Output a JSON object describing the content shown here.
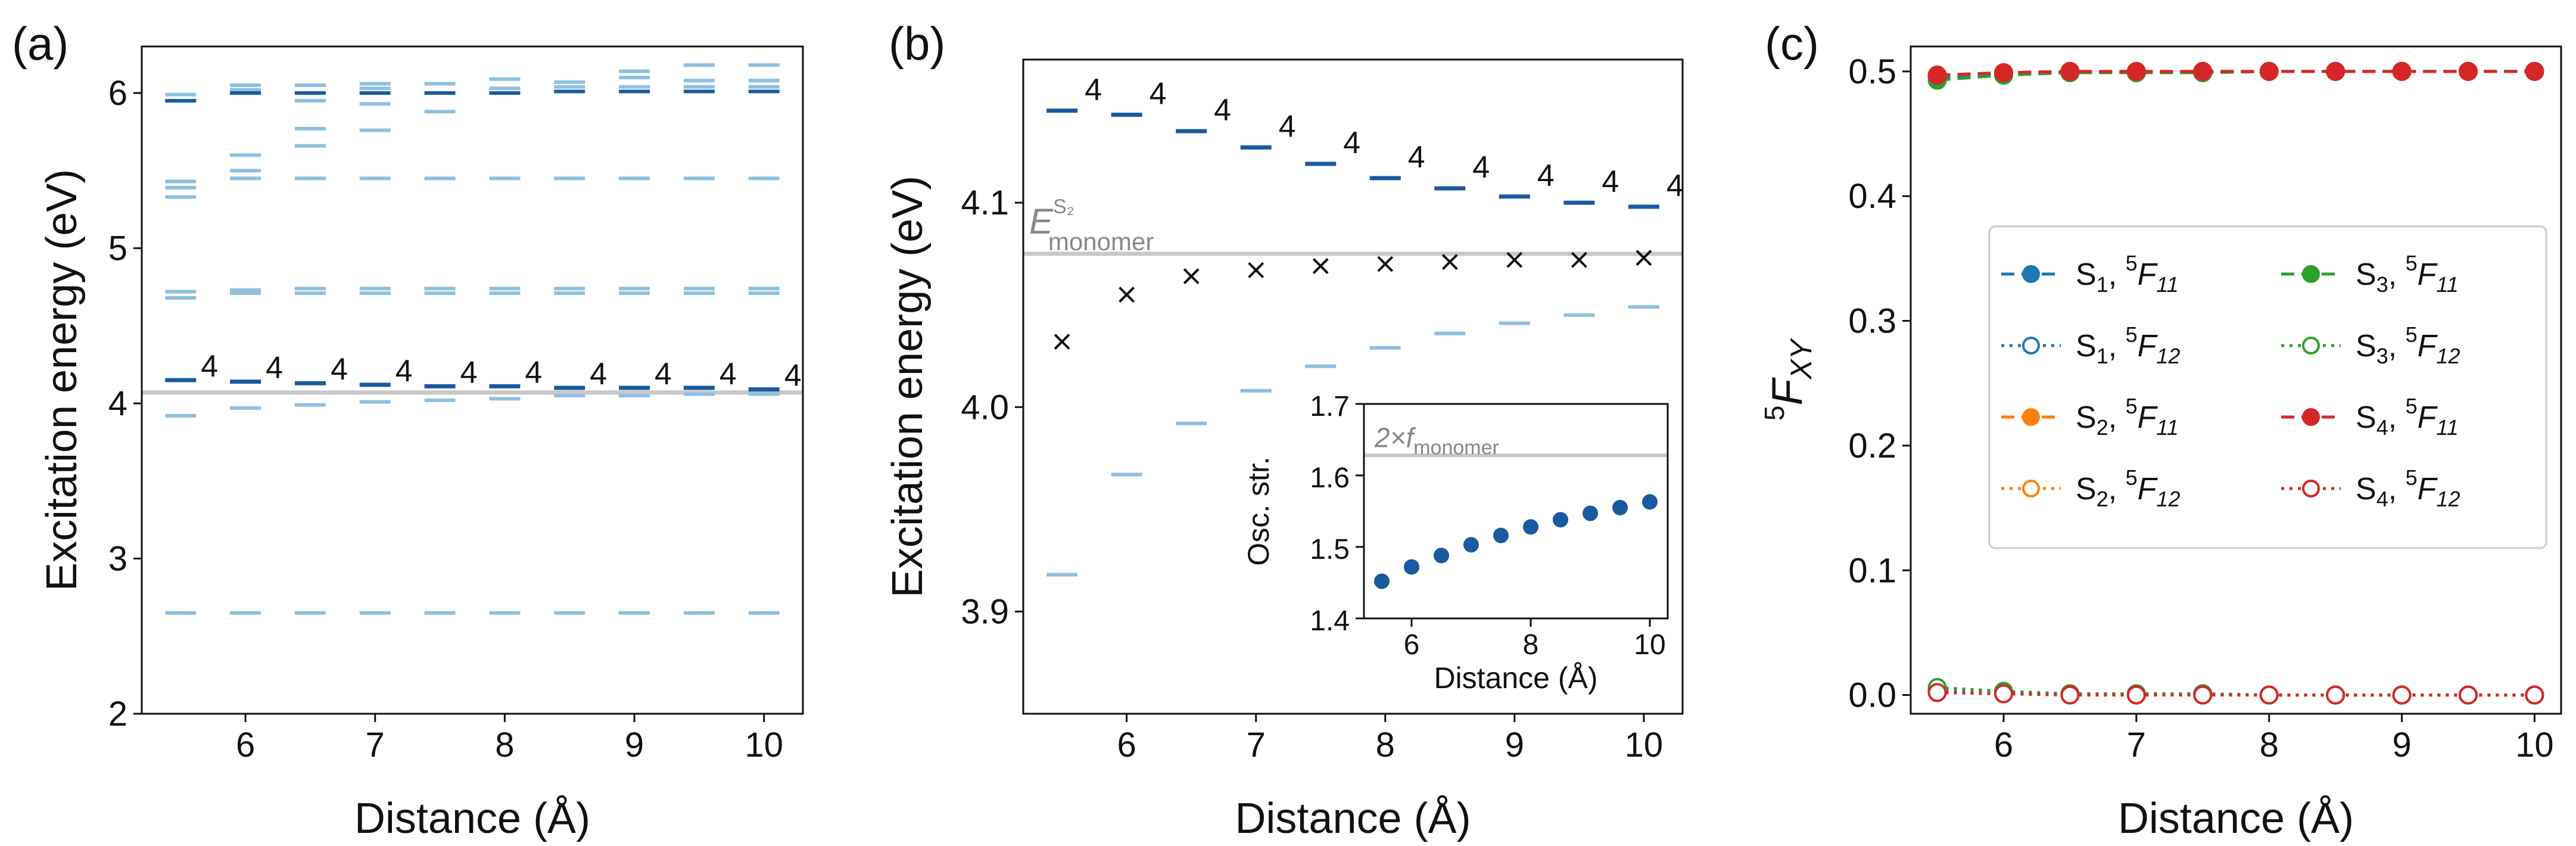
{
  "chart_data": [
    {
      "panel": "(a)",
      "type": "scatter",
      "description": "Excitation energy levels vs distance (horizontal dashes)",
      "xlabel": "Distance (Å)",
      "ylabel": "Excitation energy (eV)",
      "xlim": [
        5.2,
        10.3
      ],
      "ylim": [
        2,
        6.3
      ],
      "xticks": [
        6,
        7,
        8,
        9,
        10
      ],
      "yticks": [
        2,
        3,
        4,
        5,
        6
      ],
      "reference_line": 4.07,
      "x": [
        5.5,
        6.0,
        6.5,
        7.0,
        7.5,
        8.0,
        8.5,
        9.0,
        9.5,
        10.0
      ],
      "dark_levels": [
        4.15,
        4.14,
        4.13,
        4.12,
        4.11,
        4.11,
        4.1,
        4.1,
        4.1,
        4.09
      ],
      "dark_labels": [
        "4",
        "4",
        "4",
        "4",
        "4",
        "4",
        "4",
        "4",
        "4",
        "4"
      ],
      "dark_upper_levels": [
        5.95,
        6.0,
        6.0,
        6.0,
        6.0,
        6.0,
        6.01,
        6.01,
        6.01,
        6.01
      ],
      "light_levels": [
        [
          2.65,
          3.92,
          4.68,
          4.72,
          5.33,
          5.39,
          5.43,
          5.95,
          5.99
        ],
        [
          2.65,
          3.97,
          4.71,
          4.73,
          5.45,
          5.5,
          5.6,
          6.02,
          6.05
        ],
        [
          2.65,
          3.99,
          4.71,
          4.74,
          5.45,
          5.66,
          5.77,
          5.95,
          6.05
        ],
        [
          2.65,
          4.01,
          4.71,
          4.74,
          5.45,
          5.76,
          5.93,
          6.03,
          6.06
        ],
        [
          2.65,
          4.02,
          4.71,
          4.74,
          5.45,
          5.88,
          6.06
        ],
        [
          2.65,
          4.03,
          4.71,
          4.74,
          5.45,
          6.03,
          6.09
        ],
        [
          2.65,
          4.05,
          4.71,
          4.74,
          5.45,
          6.04,
          6.07
        ],
        [
          2.65,
          4.05,
          4.71,
          4.74,
          5.45,
          6.04,
          6.1,
          6.14
        ],
        [
          2.65,
          4.06,
          4.71,
          4.74,
          5.45,
          6.04,
          6.08,
          6.18
        ],
        [
          2.65,
          4.06,
          4.71,
          4.74,
          5.45,
          6.04,
          6.08,
          6.18
        ]
      ]
    },
    {
      "panel": "(b)",
      "type": "scatter",
      "description": "Zoomed excitation energies vs distance with monomer reference",
      "xlabel": "Distance (Å)",
      "ylabel": "Excitation energy (eV)",
      "xlim": [
        5.2,
        10.3
      ],
      "ylim": [
        3.85,
        4.17
      ],
      "xticks": [
        6,
        7,
        8,
        9,
        10
      ],
      "yticks": [
        3.9,
        4.0,
        4.1
      ],
      "reference_line": 4.075,
      "reference_label": "E",
      "reference_sup": "S₂",
      "reference_sub": "monomer",
      "x": [
        5.5,
        6.0,
        6.5,
        7.0,
        7.5,
        8.0,
        8.5,
        9.0,
        9.5,
        10.0
      ],
      "dark_levels": [
        4.145,
        4.143,
        4.135,
        4.127,
        4.119,
        4.112,
        4.107,
        4.103,
        4.1,
        4.098
      ],
      "dark_labels": [
        "4",
        "4",
        "4",
        "4",
        "4",
        "4",
        "4",
        "4",
        "4",
        "4"
      ],
      "cross_values": [
        4.032,
        4.055,
        4.064,
        4.067,
        4.069,
        4.07,
        4.071,
        4.072,
        4.072,
        4.073
      ],
      "light_levels": [
        3.918,
        3.967,
        3.992,
        4.008,
        4.02,
        4.029,
        4.036,
        4.041,
        4.045,
        4.049
      ],
      "inset": {
        "type": "scatter",
        "xlabel": "Distance (Å)",
        "ylabel": "Osc. str.",
        "xlim": [
          5.2,
          10.3
        ],
        "ylim": [
          1.4,
          1.7
        ],
        "xticks": [
          6,
          8,
          10
        ],
        "yticks": [
          1.4,
          1.5,
          1.6,
          1.7
        ],
        "reference_line": 1.628,
        "reference_label": "2×f",
        "reference_sub": "monomer",
        "x": [
          5.5,
          6.0,
          6.5,
          7.0,
          7.5,
          8.0,
          8.5,
          9.0,
          9.5,
          10.0
        ],
        "values": [
          1.452,
          1.472,
          1.488,
          1.503,
          1.516,
          1.528,
          1.538,
          1.547,
          1.555,
          1.563
        ]
      }
    },
    {
      "panel": "(c)",
      "type": "line",
      "xlabel": "Distance (Å)",
      "ylabel_main": "F",
      "ylabel_sup": "5",
      "ylabel_sub": "XY",
      "xlim": [
        5.3,
        10.2
      ],
      "ylim": [
        -0.015,
        0.52
      ],
      "xticks": [
        6,
        7,
        8,
        9,
        10
      ],
      "yticks": [
        0.0,
        0.1,
        0.2,
        0.3,
        0.4,
        0.5
      ],
      "x": [
        5.5,
        6.0,
        6.5,
        7.0,
        7.5,
        8.0,
        8.5,
        9.0,
        9.5,
        10.0
      ],
      "legend_position": "center-right",
      "series": [
        {
          "name": "S1, 5F11",
          "state": "S",
          "state_sub": "1",
          "f_sup": "5",
          "f_main": "F",
          "f_sub": "11",
          "color": "#1f77b4",
          "style": "dashed",
          "marker": "filled",
          "values": [
            0.495,
            0.498,
            0.499,
            0.499,
            0.499,
            0.5,
            0.5,
            0.5,
            0.5,
            0.5
          ]
        },
        {
          "name": "S1, 5F12",
          "state": "S",
          "state_sub": "1",
          "f_sup": "5",
          "f_main": "F",
          "f_sub": "12",
          "color": "#1f77b4",
          "style": "dotted",
          "marker": "open",
          "values": [
            0.004,
            0.002,
            0.001,
            0.001,
            0.001,
            0.0,
            0.0,
            0.0,
            0.0,
            0.0
          ]
        },
        {
          "name": "S2, 5F11",
          "state": "S",
          "state_sub": "2",
          "f_sup": "5",
          "f_main": "F",
          "f_sub": "11",
          "color": "#ff7f0e",
          "style": "dashed",
          "marker": "filled",
          "values": [
            0.497,
            0.499,
            0.5,
            0.5,
            0.5,
            0.5,
            0.5,
            0.5,
            0.5,
            0.5
          ]
        },
        {
          "name": "S2, 5F12",
          "state": "S",
          "state_sub": "2",
          "f_sup": "5",
          "f_main": "F",
          "f_sub": "12",
          "color": "#ff7f0e",
          "style": "dotted",
          "marker": "open",
          "values": [
            0.002,
            0.001,
            0.0,
            0.0,
            0.0,
            0.0,
            0.0,
            0.0,
            0.0,
            0.0
          ]
        },
        {
          "name": "S3, 5F11",
          "state": "S",
          "state_sub": "3",
          "f_sup": "5",
          "f_main": "F",
          "f_sub": "11",
          "color": "#2ca02c",
          "style": "dashed",
          "marker": "filled",
          "values": [
            0.493,
            0.497,
            0.499,
            0.499,
            0.499,
            0.5,
            0.5,
            0.5,
            0.5,
            0.5
          ]
        },
        {
          "name": "S3, 5F12",
          "state": "S",
          "state_sub": "3",
          "f_sup": "5",
          "f_main": "F",
          "f_sub": "12",
          "color": "#2ca02c",
          "style": "dotted",
          "marker": "open",
          "values": [
            0.006,
            0.003,
            0.001,
            0.001,
            0.001,
            0.0,
            0.0,
            0.0,
            0.0,
            0.0
          ]
        },
        {
          "name": "S4, 5F11",
          "state": "S",
          "state_sub": "4",
          "f_sup": "5",
          "f_main": "F",
          "f_sub": "11",
          "color": "#d62728",
          "style": "dashed",
          "marker": "filled",
          "values": [
            0.497,
            0.499,
            0.5,
            0.5,
            0.5,
            0.5,
            0.5,
            0.5,
            0.5,
            0.5
          ]
        },
        {
          "name": "S4, 5F12",
          "state": "S",
          "state_sub": "4",
          "f_sup": "5",
          "f_main": "F",
          "f_sub": "12",
          "color": "#d62728",
          "style": "dotted",
          "marker": "open",
          "values": [
            0.002,
            0.001,
            0.0,
            0.0,
            0.0,
            0.0,
            0.0,
            0.0,
            0.0,
            0.0
          ]
        }
      ]
    }
  ],
  "colors": {
    "dark_blue": "#1a5a9e",
    "light_blue": "#8fc0e0",
    "reference_gray": "#c8c8c8",
    "ref_text_gray": "#888888",
    "axis": "#111111"
  }
}
